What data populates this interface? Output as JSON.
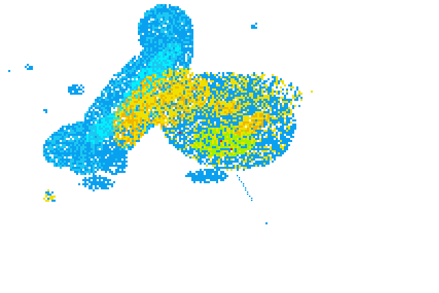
{
  "map": {
    "layer": "radar-reflectivity",
    "palette": {
      "light": "#0aa0f0",
      "cyan": "#00f0ff",
      "medium_cyan": "#1cc8f0",
      "green": "#a0f000",
      "yellow": "#f0e000",
      "orange": "#f0b400",
      "red": "#e02000"
    }
  }
}
